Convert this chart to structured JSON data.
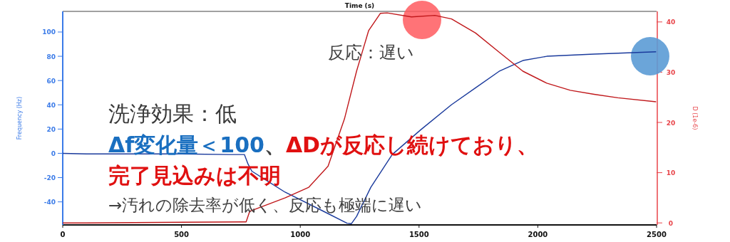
{
  "chart_data": {
    "type": "line",
    "title": "Time (s)",
    "ylabel": "Frequency (Hz)",
    "y2label": "D (1e-6)",
    "xlim": [
      0,
      2500
    ],
    "xticks": [
      0,
      500,
      1000,
      1500,
      2000,
      2500
    ],
    "ylim": [
      -59,
      117
    ],
    "yticks": [
      -40,
      -20,
      0,
      20,
      40,
      60,
      80,
      100
    ],
    "y2lim": [
      -0.4,
      42.1
    ],
    "y2ticks": [
      0,
      10,
      20,
      30,
      40
    ],
    "grid": false,
    "line_style": "solid",
    "series": [
      {
        "color": "#1a3a9c",
        "x": [
          0,
          100,
          300,
          500,
          700,
          765,
          780,
          796,
          936,
          1100,
          1197,
          1215,
          1237,
          1297,
          1387,
          1507,
          1636,
          1738,
          1837,
          1937,
          2038,
          2237,
          2498
        ],
        "values": [
          0,
          -0.5,
          -0.5,
          -0.5,
          -1,
          -1,
          -8.8,
          -14.7,
          -32,
          -48,
          -57.6,
          -58,
          -52,
          -28,
          -1,
          19.4,
          40,
          54,
          67.6,
          76.5,
          80,
          81.8,
          83.7
        ]
      },
      {
        "color": "#c0181b",
        "axis": "y2",
        "x": [
          0,
          100,
          400,
          760,
          772,
          787,
          937,
          1036,
          1117,
          1186,
          1237,
          1288,
          1337,
          1366,
          1468,
          1567,
          1637,
          1738,
          1837,
          1937,
          2038,
          2137,
          2237,
          2337,
          2498
        ],
        "values": [
          0,
          0,
          0.1,
          0.2,
          0.2,
          2.3,
          5,
          7.1,
          11.3,
          20.7,
          30.2,
          38.3,
          41.7,
          41.8,
          41,
          41.3,
          40.6,
          37.8,
          34,
          30.2,
          27.8,
          26.4,
          25.6,
          24.9,
          24.1
        ]
      }
    ],
    "annotations": [
      "反応：遅い",
      "洗浄効果：低",
      "Δf変化量＜100",
      "、",
      "ΔDが反応し続けており、",
      "完了見込みは不明",
      "→汚れの除去率が低く、反応も極端に遅い"
    ]
  }
}
